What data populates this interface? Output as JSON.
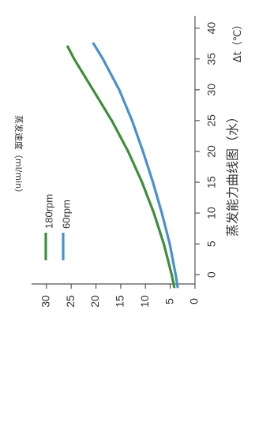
{
  "chart_data": {
    "type": "line",
    "orientation": "rotated-90",
    "title": "蒸发能力曲线图（水）",
    "xlabel": "Δt（℃）",
    "ylabel": "蒸发速度（ml/min）",
    "x_ticks": [
      0,
      5,
      10,
      15,
      20,
      25,
      30,
      35,
      40
    ],
    "y_ticks": [
      0,
      5,
      10,
      15,
      20,
      25,
      30
    ],
    "xlim": [
      -1.5,
      42
    ],
    "ylim": [
      0,
      33
    ],
    "grid": false,
    "legend_position": "middle-left",
    "series": [
      {
        "name": "180rpm",
        "color": "#3d8f3a",
        "x": [
          -2,
          0,
          5,
          10,
          15,
          20,
          25,
          30,
          35,
          37
        ],
        "y": [
          4.2,
          4.7,
          6.3,
          8.3,
          10.7,
          13.5,
          16.8,
          20.6,
          24.4,
          25.7
        ]
      },
      {
        "name": "60rpm",
        "color": "#4a8fd0",
        "x": [
          -2,
          0,
          5,
          10,
          15,
          20,
          25,
          30,
          35,
          37.5
        ],
        "y": [
          3.5,
          3.9,
          5.1,
          6.7,
          8.5,
          10.5,
          12.7,
          15.3,
          18.6,
          20.5
        ]
      }
    ]
  }
}
